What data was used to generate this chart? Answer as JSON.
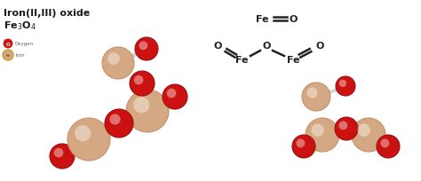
{
  "title_line1": "Iron(II,III) oxide",
  "title_line2": "Fe$_3$O$_4$",
  "bg_color": "#ffffff",
  "fe_color": "#d4a882",
  "fe_edge": "#c8906a",
  "o_color": "#cc1111",
  "o_edge": "#991111",
  "bond_color": "#d0d0d0",
  "legend_o_color": "#cc1111",
  "legend_fe_fill": "#d4a882",
  "legend_fe_border": "#c8a030",
  "text_color": "#1a1a1a",
  "struct_line_color": "#222222",
  "legend_o_label": "Oxygen",
  "legend_fe_label": "Iron"
}
